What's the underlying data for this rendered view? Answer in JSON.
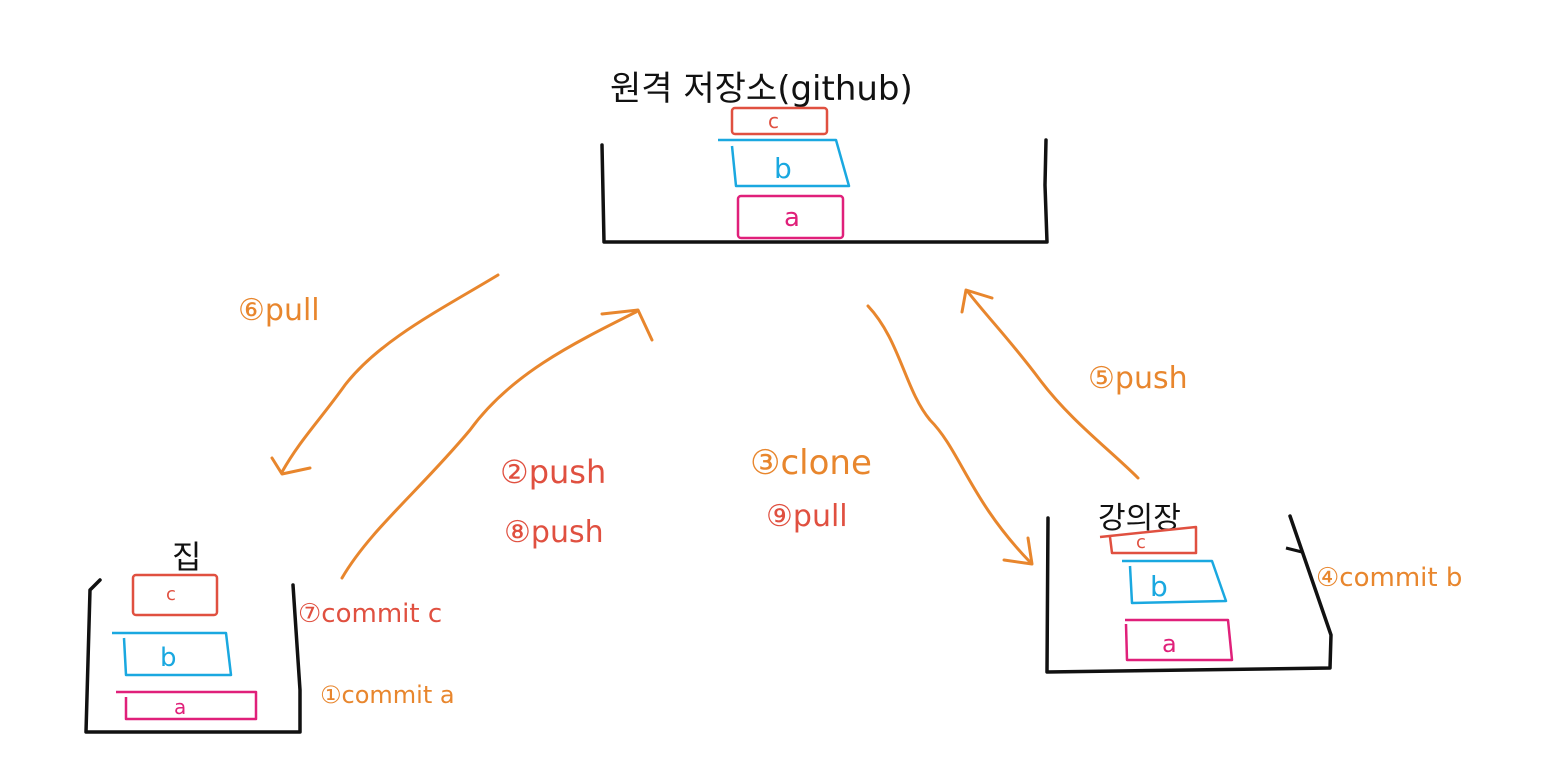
{
  "colors": {
    "ink": "#111111",
    "orange": "#e8862d",
    "red": "#e05040",
    "blue": "#1aa8e0",
    "magenta": "#e0207a"
  },
  "remote": {
    "label": "원격 저장소(github)",
    "commits": [
      "c",
      "b",
      "a"
    ]
  },
  "local_left": {
    "label": "집",
    "commits": [
      "c",
      "b",
      "a"
    ]
  },
  "local_right": {
    "label": "강의장",
    "commits": [
      "c",
      "b",
      "a"
    ]
  },
  "steps": [
    {
      "id": "s1",
      "text": "①commit a"
    },
    {
      "id": "s2",
      "text": "②push"
    },
    {
      "id": "s3",
      "text": "③clone"
    },
    {
      "id": "s4",
      "text": "④commit b"
    },
    {
      "id": "s5",
      "text": "⑤push"
    },
    {
      "id": "s6",
      "text": "⑥pull"
    },
    {
      "id": "s7",
      "text": "⑦commit c"
    },
    {
      "id": "s8",
      "text": "⑧push"
    },
    {
      "id": "s9",
      "text": "⑨pull"
    }
  ]
}
